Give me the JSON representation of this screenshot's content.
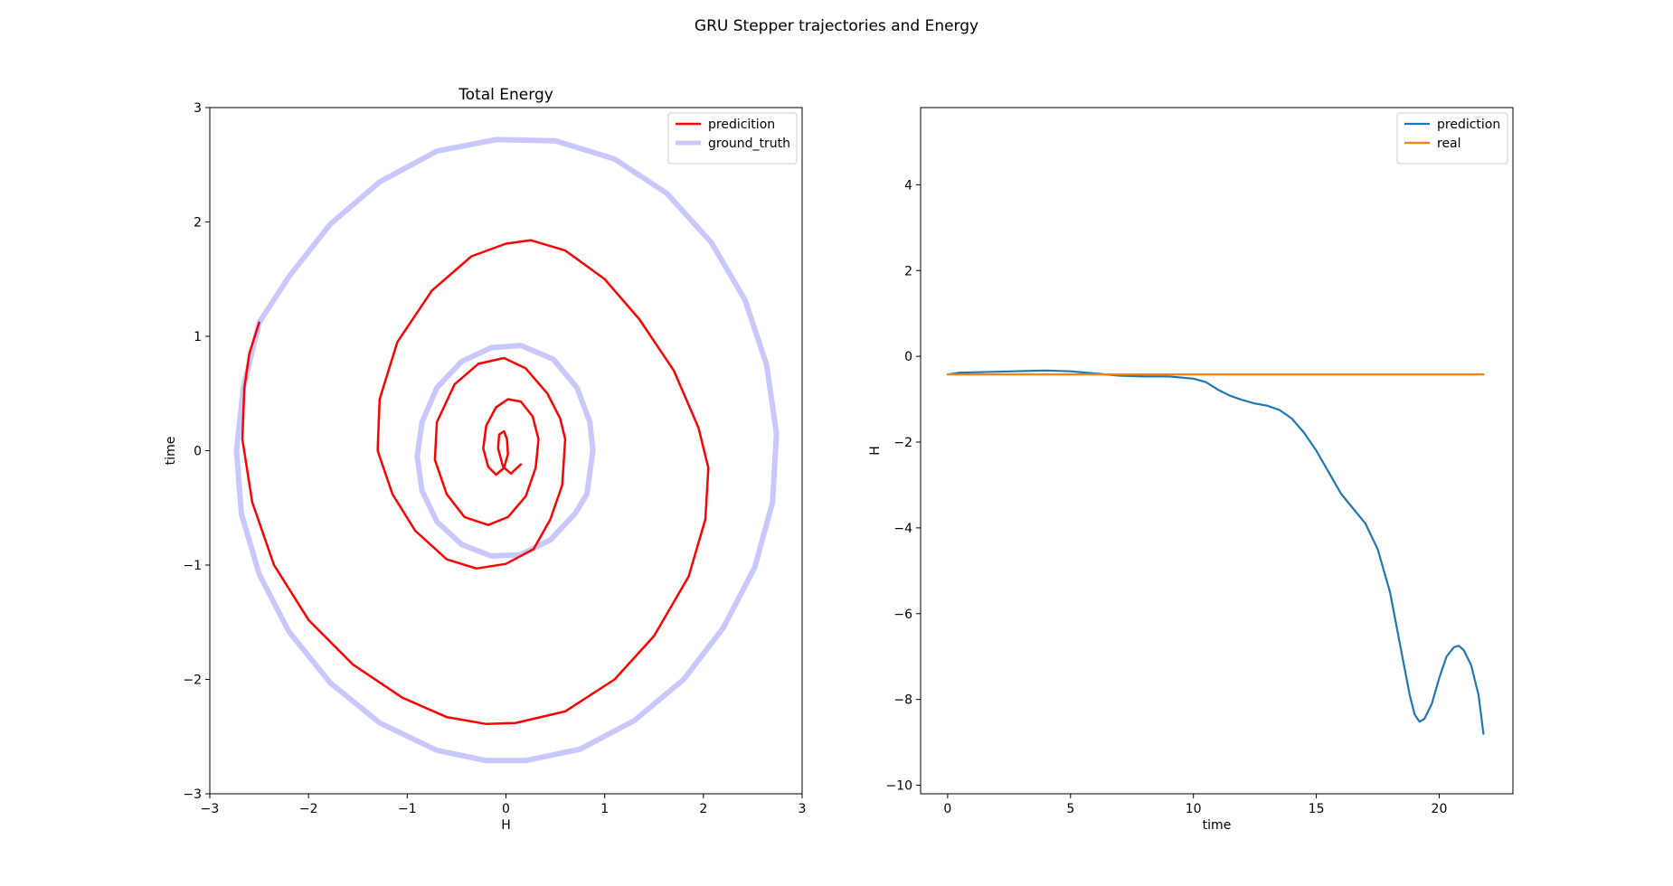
{
  "figure": {
    "suptitle": "GRU Stepper trajectories and Energy"
  },
  "chart_data": [
    {
      "type": "line",
      "title": "Total Energy",
      "xlabel": "H",
      "ylabel": "time",
      "xlim": [
        -3,
        3
      ],
      "ylim": [
        -3,
        3
      ],
      "xticks": [
        -3,
        -2,
        -1,
        0,
        1,
        2,
        3
      ],
      "yticks": [
        -3,
        -2,
        -1,
        0,
        1,
        2,
        3
      ],
      "grid": false,
      "legend": "top-right",
      "series": [
        {
          "name": "predicition",
          "color": "#ff0000",
          "points": [
            [
              0.15,
              -0.12
            ],
            [
              0.05,
              -0.2
            ],
            [
              -0.03,
              -0.14
            ],
            [
              -0.08,
              0.02
            ],
            [
              -0.07,
              0.14
            ],
            [
              -0.02,
              0.17
            ],
            [
              0.01,
              0.1
            ],
            [
              0.02,
              -0.03
            ],
            [
              -0.02,
              -0.15
            ],
            [
              -0.1,
              -0.21
            ],
            [
              -0.18,
              -0.14
            ],
            [
              -0.23,
              0.02
            ],
            [
              -0.2,
              0.22
            ],
            [
              -0.1,
              0.38
            ],
            [
              0.02,
              0.45
            ],
            [
              0.15,
              0.43
            ],
            [
              0.27,
              0.3
            ],
            [
              0.33,
              0.1
            ],
            [
              0.3,
              -0.15
            ],
            [
              0.2,
              -0.4
            ],
            [
              0.02,
              -0.58
            ],
            [
              -0.18,
              -0.65
            ],
            [
              -0.42,
              -0.58
            ],
            [
              -0.6,
              -0.38
            ],
            [
              -0.72,
              -0.08
            ],
            [
              -0.7,
              0.25
            ],
            [
              -0.52,
              0.58
            ],
            [
              -0.28,
              0.76
            ],
            [
              -0.02,
              0.81
            ],
            [
              0.2,
              0.72
            ],
            [
              0.42,
              0.5
            ],
            [
              0.55,
              0.28
            ],
            [
              0.6,
              0.1
            ],
            [
              0.57,
              -0.3
            ],
            [
              0.45,
              -0.6
            ],
            [
              0.28,
              -0.86
            ],
            [
              0.0,
              -0.99
            ],
            [
              -0.3,
              -1.03
            ],
            [
              -0.6,
              -0.95
            ],
            [
              -0.92,
              -0.7
            ],
            [
              -1.15,
              -0.38
            ],
            [
              -1.3,
              0.0
            ],
            [
              -1.28,
              0.45
            ],
            [
              -1.1,
              0.95
            ],
            [
              -0.75,
              1.4
            ],
            [
              -0.35,
              1.7
            ],
            [
              0.0,
              1.81
            ],
            [
              0.25,
              1.84
            ],
            [
              0.6,
              1.75
            ],
            [
              1.0,
              1.5
            ],
            [
              1.35,
              1.15
            ],
            [
              1.7,
              0.7
            ],
            [
              1.95,
              0.2
            ],
            [
              2.05,
              -0.15
            ],
            [
              2.02,
              -0.6
            ],
            [
              1.85,
              -1.1
            ],
            [
              1.5,
              -1.62
            ],
            [
              1.1,
              -2.0
            ],
            [
              0.6,
              -2.28
            ],
            [
              0.1,
              -2.38
            ],
            [
              -0.2,
              -2.39
            ],
            [
              -0.6,
              -2.33
            ],
            [
              -1.05,
              -2.16
            ],
            [
              -1.55,
              -1.87
            ],
            [
              -2.0,
              -1.48
            ],
            [
              -2.35,
              -1.0
            ],
            [
              -2.57,
              -0.45
            ],
            [
              -2.67,
              0.1
            ],
            [
              -2.65,
              0.55
            ],
            [
              -2.6,
              0.85
            ],
            [
              -2.5,
              1.12
            ]
          ]
        },
        {
          "name": "ground_truth",
          "color": "#c8c8ff",
          "points": [
            [
              -2.5,
              1.12
            ],
            [
              -2.66,
              0.55
            ],
            [
              -2.73,
              0.0
            ],
            [
              -2.68,
              -0.55
            ],
            [
              -2.5,
              -1.08
            ],
            [
              -2.2,
              -1.58
            ],
            [
              -1.78,
              -2.03
            ],
            [
              -1.28,
              -2.38
            ],
            [
              -0.7,
              -2.62
            ],
            [
              -0.2,
              -2.71
            ],
            [
              0.2,
              -2.71
            ],
            [
              0.75,
              -2.61
            ],
            [
              1.3,
              -2.36
            ],
            [
              1.8,
              -2.0
            ],
            [
              2.2,
              -1.55
            ],
            [
              2.52,
              -1.02
            ],
            [
              2.7,
              -0.45
            ],
            [
              2.74,
              0.15
            ],
            [
              2.64,
              0.75
            ],
            [
              2.42,
              1.32
            ],
            [
              2.08,
              1.82
            ],
            [
              1.63,
              2.25
            ],
            [
              1.1,
              2.55
            ],
            [
              0.5,
              2.71
            ],
            [
              -0.1,
              2.72
            ],
            [
              -0.7,
              2.62
            ],
            [
              -1.28,
              2.35
            ],
            [
              -1.78,
              1.98
            ],
            [
              -2.2,
              1.52
            ],
            [
              -2.5,
              1.12
            ]
          ]
        },
        {
          "name": "ground_truth",
          "color": "#c8c8ff",
          "points": [
            [
              0.82,
              -0.38
            ],
            [
              0.88,
              0.0
            ],
            [
              0.85,
              0.25
            ],
            [
              0.72,
              0.55
            ],
            [
              0.48,
              0.8
            ],
            [
              0.15,
              0.92
            ],
            [
              -0.15,
              0.9
            ],
            [
              -0.45,
              0.78
            ],
            [
              -0.7,
              0.55
            ],
            [
              -0.85,
              0.25
            ],
            [
              -0.9,
              -0.05
            ],
            [
              -0.85,
              -0.35
            ],
            [
              -0.7,
              -0.62
            ],
            [
              -0.45,
              -0.82
            ],
            [
              -0.15,
              -0.92
            ],
            [
              0.15,
              -0.91
            ],
            [
              0.45,
              -0.78
            ],
            [
              0.7,
              -0.55
            ],
            [
              0.82,
              -0.38
            ]
          ]
        }
      ]
    },
    {
      "type": "line",
      "title": "",
      "xlabel": "time",
      "ylabel": "H",
      "xlim": [
        -1.1,
        23.0
      ],
      "ylim": [
        -10.2,
        5.8
      ],
      "xticks": [
        0,
        5,
        10,
        15,
        20
      ],
      "yticks": [
        -10,
        -8,
        -6,
        -4,
        -2,
        0,
        2,
        4
      ],
      "grid": false,
      "legend": "top-right",
      "series": [
        {
          "name": "prediction",
          "color": "#1f77b4",
          "points": [
            [
              0,
              -0.42
            ],
            [
              0.5,
              -0.38
            ],
            [
              2,
              -0.36
            ],
            [
              4,
              -0.33
            ],
            [
              5,
              -0.35
            ],
            [
              6,
              -0.4
            ],
            [
              7,
              -0.45
            ],
            [
              8,
              -0.47
            ],
            [
              9,
              -0.47
            ],
            [
              10,
              -0.52
            ],
            [
              10.5,
              -0.6
            ],
            [
              11,
              -0.78
            ],
            [
              11.5,
              -0.92
            ],
            [
              12,
              -1.02
            ],
            [
              12.5,
              -1.1
            ],
            [
              13,
              -1.15
            ],
            [
              13.5,
              -1.25
            ],
            [
              14,
              -1.45
            ],
            [
              14.5,
              -1.78
            ],
            [
              15,
              -2.2
            ],
            [
              15.5,
              -2.7
            ],
            [
              16,
              -3.2
            ],
            [
              16.5,
              -3.55
            ],
            [
              17,
              -3.9
            ],
            [
              17.5,
              -4.5
            ],
            [
              18,
              -5.5
            ],
            [
              18.5,
              -7.0
            ],
            [
              18.8,
              -7.9
            ],
            [
              19.0,
              -8.35
            ],
            [
              19.2,
              -8.52
            ],
            [
              19.4,
              -8.45
            ],
            [
              19.7,
              -8.1
            ],
            [
              20,
              -7.5
            ],
            [
              20.3,
              -7.0
            ],
            [
              20.6,
              -6.78
            ],
            [
              20.8,
              -6.75
            ],
            [
              21.0,
              -6.85
            ],
            [
              21.3,
              -7.2
            ],
            [
              21.6,
              -7.9
            ],
            [
              21.8,
              -8.8
            ]
          ]
        },
        {
          "name": "real",
          "color": "#ff7f0e",
          "points": [
            [
              0,
              -0.42
            ],
            [
              21.8,
              -0.42
            ]
          ]
        }
      ]
    }
  ]
}
